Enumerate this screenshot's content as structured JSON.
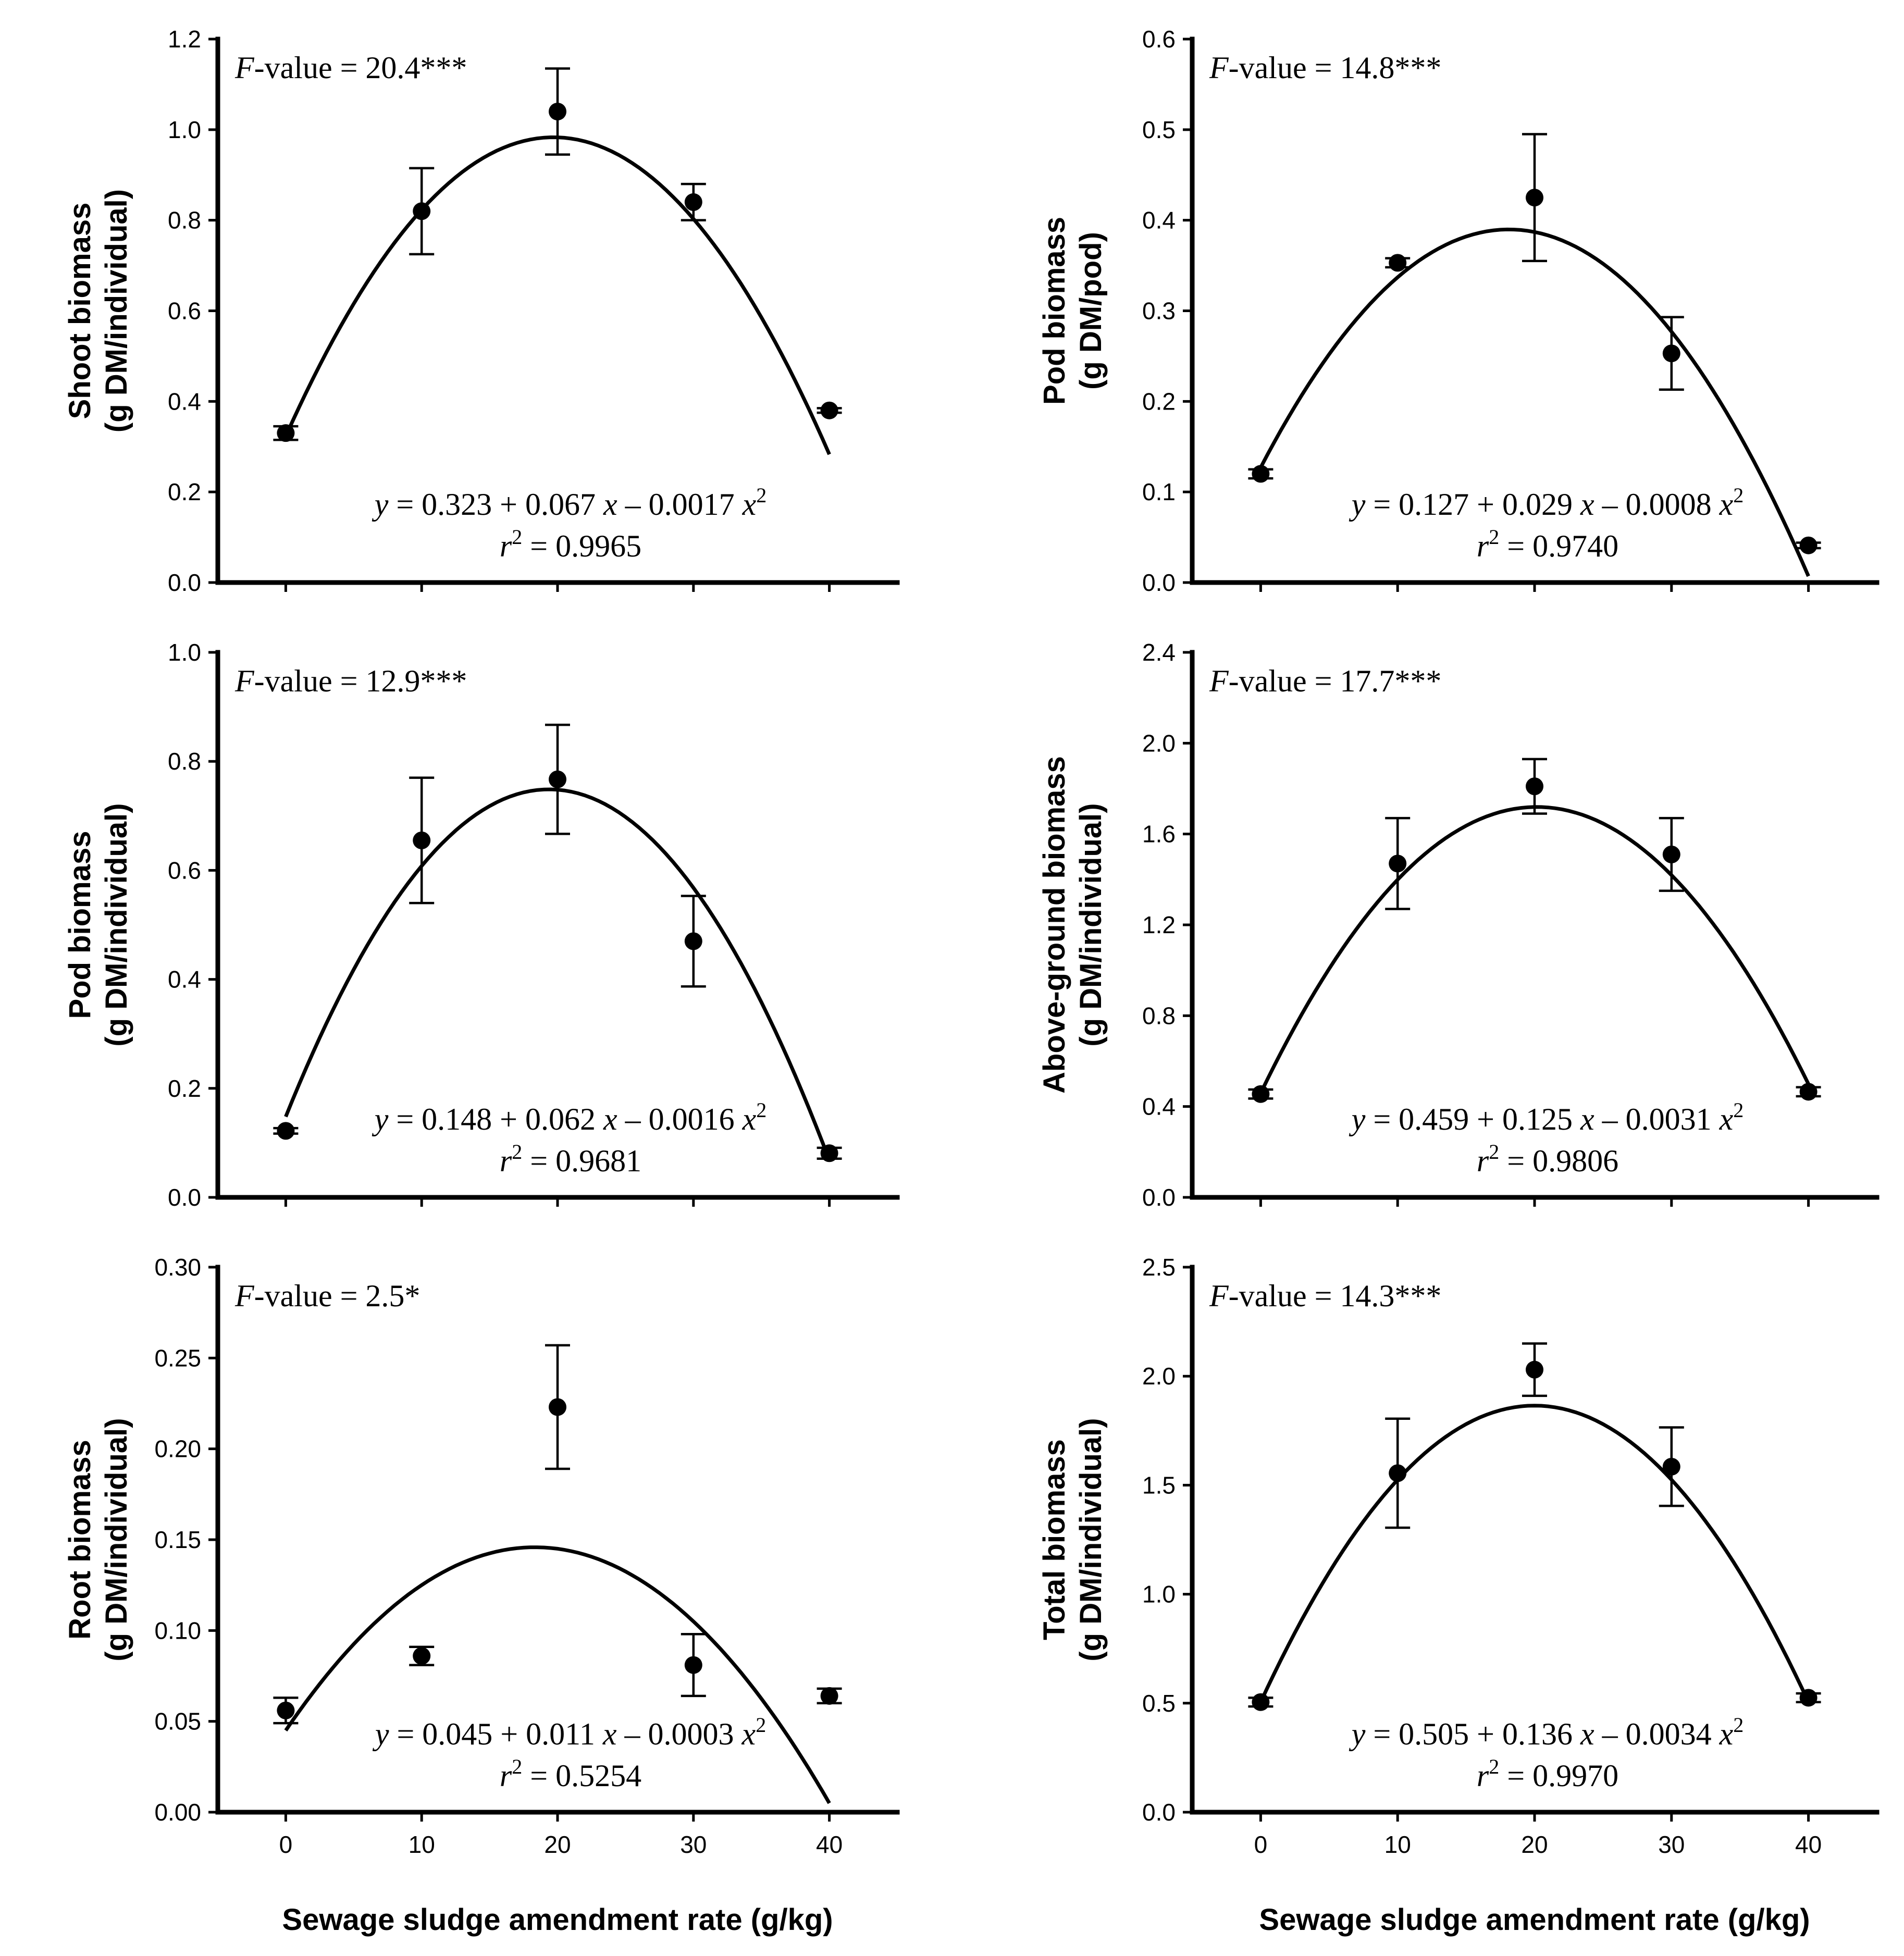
{
  "x_axis_label": "Sewage sludge amendment rate (g/kg)",
  "chart_data": [
    {
      "type": "scatter",
      "panel": "top-left",
      "ylabel_line1": "Shoot biomass",
      "ylabel_line2": "(g DM/individual)",
      "ylim": [
        0,
        1.2
      ],
      "yticks": [
        "0.0",
        "0.2",
        "0.4",
        "0.6",
        "0.8",
        "1.0",
        "1.2"
      ],
      "xticks": [],
      "x": [
        0,
        10,
        20,
        30,
        40
      ],
      "y": [
        0.33,
        0.82,
        1.04,
        0.84,
        0.38
      ],
      "err": [
        0.015,
        0.095,
        0.095,
        0.04,
        0.005
      ],
      "fit": {
        "a": 0.323,
        "b": 0.067,
        "c": -0.0017
      },
      "fvalue_prefix": "F",
      "fvalue_rest": "-value = 20.4***",
      "eq_y": "y",
      "eq_mid": " = 0.323 + 0.067 ",
      "eq_x1": "x",
      "eq_minus": " – 0.0017 ",
      "eq_x2": "x",
      "eq_exp": "2",
      "r_sym": "r",
      "r_exp": "2",
      "r_val": " = 0.9965"
    },
    {
      "type": "scatter",
      "panel": "top-right",
      "ylabel_line1": "Pod biomass",
      "ylabel_line2": "(g DM/pod)",
      "ylim": [
        0,
        0.6
      ],
      "yticks": [
        "0.0",
        "0.1",
        "0.2",
        "0.3",
        "0.4",
        "0.5",
        "0.6"
      ],
      "xticks": [],
      "x": [
        0,
        10,
        20,
        30,
        40
      ],
      "y": [
        0.12,
        0.353,
        0.425,
        0.253,
        0.041
      ],
      "err": [
        0.005,
        0.005,
        0.07,
        0.04,
        0.003
      ],
      "fit": {
        "a": 0.127,
        "b": 0.029,
        "c": -0.0008
      },
      "fvalue_prefix": "F",
      "fvalue_rest": "-value = 14.8***",
      "eq_y": "y",
      "eq_mid": " = 0.127 + 0.029 ",
      "eq_x1": "x",
      "eq_minus": " – 0.0008 ",
      "eq_x2": "x",
      "eq_exp": "2",
      "r_sym": "r",
      "r_exp": "2",
      "r_val": " = 0.9740"
    },
    {
      "type": "scatter",
      "panel": "middle-left",
      "ylabel_line1": "Pod biomass",
      "ylabel_line2": "(g DM/individual)",
      "ylim": [
        0,
        1.0
      ],
      "yticks": [
        "0.0",
        "0.2",
        "0.4",
        "0.6",
        "0.8",
        "1.0"
      ],
      "xticks": [],
      "x": [
        0,
        10,
        20,
        30,
        40
      ],
      "y": [
        0.122,
        0.655,
        0.767,
        0.47,
        0.081
      ],
      "err": [
        0.005,
        0.115,
        0.1,
        0.083,
        0.01
      ],
      "fit": {
        "a": 0.148,
        "b": 0.062,
        "c": -0.0016
      },
      "fvalue_prefix": "F",
      "fvalue_rest": "-value = 12.9***",
      "eq_y": "y",
      "eq_mid": " = 0.148 + 0.062 ",
      "eq_x1": "x",
      "eq_minus": " – 0.0016 ",
      "eq_x2": "x",
      "eq_exp": "2",
      "r_sym": "r",
      "r_exp": "2",
      "r_val": " = 0.9681"
    },
    {
      "type": "scatter",
      "panel": "middle-right",
      "ylabel_line1": "Above-ground biomass",
      "ylabel_line2": "(g DM/individual)",
      "ylim": [
        0,
        2.4
      ],
      "yticks": [
        "0.0",
        "0.4",
        "0.8",
        "1.2",
        "1.6",
        "2.0",
        "2.4"
      ],
      "xticks": [],
      "x": [
        0,
        10,
        20,
        30,
        40
      ],
      "y": [
        0.455,
        1.47,
        1.81,
        1.51,
        0.465
      ],
      "err": [
        0.02,
        0.2,
        0.12,
        0.16,
        0.02
      ],
      "fit": {
        "a": 0.459,
        "b": 0.125,
        "c": -0.0031
      },
      "fvalue_prefix": "F",
      "fvalue_rest": "-value = 17.7***",
      "eq_y": "y",
      "eq_mid": " = 0.459 + 0.125 ",
      "eq_x1": "x",
      "eq_minus": " – 0.0031 ",
      "eq_x2": "x",
      "eq_exp": "2",
      "r_sym": "r",
      "r_exp": "2",
      "r_val": " = 0.9806"
    },
    {
      "type": "scatter",
      "panel": "bottom-left",
      "ylabel_line1": "Root biomass",
      "ylabel_line2": "(g DM/individual)",
      "ylim": [
        0,
        0.3
      ],
      "yticks": [
        "0.00",
        "0.05",
        "0.10",
        "0.15",
        "0.20",
        "0.25",
        "0.30"
      ],
      "xticks": [
        "0",
        "10",
        "20",
        "30",
        "40"
      ],
      "x": [
        0,
        10,
        20,
        30,
        40
      ],
      "y": [
        0.056,
        0.086,
        0.223,
        0.081,
        0.064
      ],
      "err": [
        0.007,
        0.005,
        0.034,
        0.017,
        0.004
      ],
      "fit": {
        "a": 0.045,
        "b": 0.011,
        "c": -0.0003
      },
      "fvalue_prefix": "F",
      "fvalue_rest": "-value = 2.5*",
      "eq_y": "y",
      "eq_mid": " = 0.045 + 0.011 ",
      "eq_x1": "x",
      "eq_minus": " – 0.0003 ",
      "eq_x2": "x",
      "eq_exp": "2",
      "r_sym": "r",
      "r_exp": "2",
      "r_val": " = 0.5254"
    },
    {
      "type": "scatter",
      "panel": "bottom-right",
      "ylabel_line1": "Total biomass",
      "ylabel_line2": "(g DM/individual)",
      "ylim": [
        0,
        2.5
      ],
      "yticks": [
        "0.0",
        "0.5",
        "1.0",
        "1.5",
        "2.0",
        "2.5"
      ],
      "xticks": [
        "0",
        "10",
        "20",
        "30",
        "40"
      ],
      "x": [
        0,
        10,
        20,
        30,
        40
      ],
      "y": [
        0.505,
        1.555,
        2.03,
        1.585,
        0.525
      ],
      "err": [
        0.02,
        0.25,
        0.12,
        0.18,
        0.02
      ],
      "fit": {
        "a": 0.505,
        "b": 0.136,
        "c": -0.0034
      },
      "fvalue_prefix": "F",
      "fvalue_rest": "-value = 14.3***",
      "eq_y": "y",
      "eq_mid": " = 0.505 + 0.136 ",
      "eq_x1": "x",
      "eq_minus": " – 0.0034 ",
      "eq_x2": "x",
      "eq_exp": "2",
      "r_sym": "r",
      "r_exp": "2",
      "r_val": " = 0.9970"
    }
  ]
}
